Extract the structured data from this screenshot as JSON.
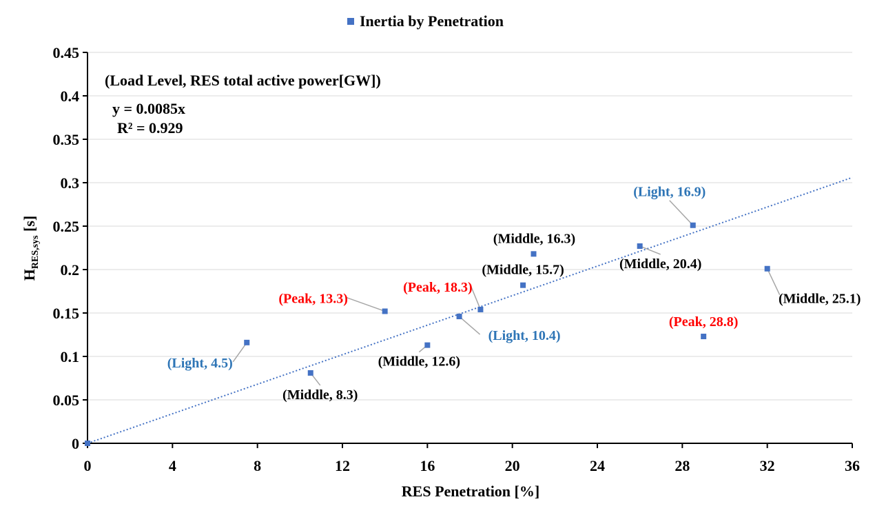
{
  "chart_data": {
    "type": "scatter",
    "legend": "Inertia by Penetration",
    "legend_position": "top-center",
    "xlabel": "RES Penetration  [%]",
    "ylabel_main": "H",
    "ylabel_sub": "RES,sys",
    "ylabel_tail": " [s]",
    "xlim": [
      0,
      36
    ],
    "ylim": [
      0,
      0.45
    ],
    "xticks": [
      0,
      4,
      8,
      12,
      16,
      20,
      24,
      28,
      32,
      36
    ],
    "yticks": [
      0,
      0.05,
      0.1,
      0.15,
      0.2,
      0.25,
      0.3,
      0.35,
      0.4,
      0.45
    ],
    "grid": "horizontal",
    "annotation_title": "(Load Level, RES total active power[GW])",
    "equation": "y = 0.0085x",
    "r_squared": "R² = 0.929",
    "trendline": {
      "slope": 0.0085,
      "style": "dotted"
    },
    "colors": {
      "marker": "#4472c4",
      "trend": "#4472c4",
      "light": "#2e75b6",
      "peak": "#ff0000",
      "middle": "#000000",
      "leader": "#a6a6a6"
    },
    "points": [
      {
        "x": 0,
        "y": 0,
        "label": ""
      },
      {
        "x": 7.5,
        "y": 0.116,
        "label": "(Light, 4.5)",
        "level": "light"
      },
      {
        "x": 10.5,
        "y": 0.081,
        "label": "(Middle, 8.3)",
        "level": "middle"
      },
      {
        "x": 14,
        "y": 0.152,
        "label": "(Peak, 13.3)",
        "level": "peak"
      },
      {
        "x": 16,
        "y": 0.113,
        "label": "(Middle, 12.6)",
        "level": "middle"
      },
      {
        "x": 17.5,
        "y": 0.146,
        "label": "(Light, 10.4)",
        "level": "light"
      },
      {
        "x": 18.5,
        "y": 0.154,
        "label": "(Peak, 18.3)",
        "level": "peak"
      },
      {
        "x": 20.5,
        "y": 0.182,
        "label": "(Middle, 15.7)",
        "level": "middle"
      },
      {
        "x": 21,
        "y": 0.218,
        "label": "(Middle, 16.3)",
        "level": "middle"
      },
      {
        "x": 26,
        "y": 0.227,
        "label": "(Middle, 20.4)",
        "level": "middle"
      },
      {
        "x": 28.5,
        "y": 0.251,
        "label": "(Light, 16.9)",
        "level": "light"
      },
      {
        "x": 29,
        "y": 0.123,
        "label": "(Peak, 28.8)",
        "level": "peak"
      },
      {
        "x": 32,
        "y": 0.201,
        "label": "(Middle, 25.1)",
        "level": "middle"
      }
    ]
  }
}
